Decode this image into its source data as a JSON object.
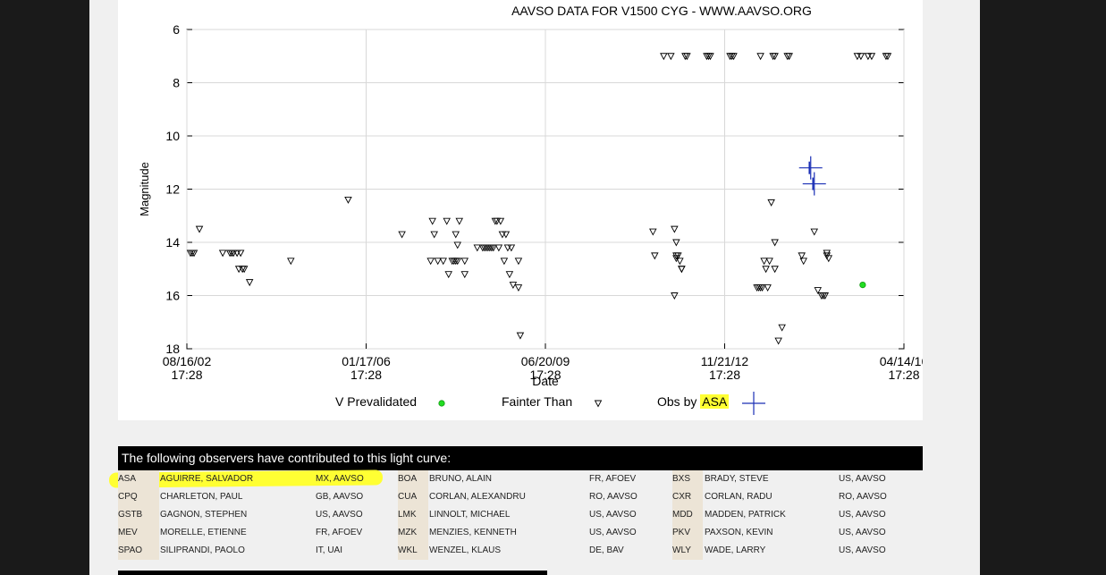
{
  "chart_data": {
    "type": "scatter",
    "title": "AAVSO DATA FOR V1500 CYG - WWW.AAVSO.ORG",
    "xlabel": "Date",
    "ylabel": "Magnitude",
    "ylim": [
      18,
      6
    ],
    "y_inverted": true,
    "y_ticks": [
      "6",
      "8",
      "10",
      "12",
      "14",
      "16",
      "18"
    ],
    "x_ticks": [
      {
        "date": "08/16/02",
        "time": "17:28"
      },
      {
        "date": "01/17/06",
        "time": "17:28"
      },
      {
        "date": "06/20/09",
        "time": "17:28"
      },
      {
        "date": "11/21/12",
        "time": "17:28"
      },
      {
        "date": "04/14/16",
        "time": "17:28"
      }
    ],
    "x_tick_positions": [
      0,
      1,
      2,
      3,
      4
    ],
    "grid": true,
    "legend": [
      {
        "label": "V Prevalidated",
        "marker": "green-dot",
        "color": "#22dd22"
      },
      {
        "label": "Fainter Than",
        "marker": "down-triangle",
        "color": "#000000"
      },
      {
        "label_prefix": "Obs by ",
        "label_highlight": "ASA",
        "marker": "blue-cross",
        "color": "#1a2fb5"
      }
    ],
    "series": [
      {
        "name": "V Prevalidated",
        "x": [
          3.77
        ],
        "y": [
          15.6
        ]
      },
      {
        "name": "Fainter Than",
        "x": [
          0.02,
          0.03,
          0.04,
          0.07,
          0.2,
          0.24,
          0.25,
          0.26,
          0.28,
          0.29,
          0.3,
          0.31,
          0.32,
          0.35,
          0.58,
          0.9,
          1.2,
          1.36,
          1.37,
          1.38,
          1.4,
          1.43,
          1.45,
          1.46,
          1.48,
          1.49,
          1.5,
          1.5,
          1.51,
          1.51,
          1.52,
          1.55,
          1.55,
          1.62,
          1.65,
          1.66,
          1.67,
          1.68,
          1.69,
          1.7,
          1.71,
          1.72,
          1.73,
          1.74,
          1.75,
          1.76,
          1.77,
          1.78,
          1.79,
          1.8,
          1.85,
          1.85,
          1.86,
          1.81,
          1.82,
          2.6,
          2.61,
          2.72,
          2.73,
          2.74,
          2.75,
          2.76,
          2.78,
          2.79,
          2.9,
          2.91,
          2.92,
          3.04,
          3.2,
          2.66,
          2.7,
          2.72,
          2.73,
          2.73,
          2.76,
          3.03,
          3.05,
          3.18,
          3.19,
          3.2,
          3.21,
          3.22,
          3.23,
          3.25,
          3.26,
          3.24,
          3.28,
          3.3,
          3.32,
          3.28,
          3.35,
          3.36,
          3.43,
          3.44,
          3.55,
          3.56,
          3.57,
          3.58,
          3.5,
          3.52,
          3.54,
          3.57,
          3.27,
          3.28,
          3.74,
          3.76,
          3.8,
          3.82,
          3.9,
          3.91
        ],
        "y": [
          14.4,
          14.4,
          14.4,
          13.5,
          14.4,
          14.4,
          14.4,
          14.4,
          14.4,
          15.0,
          14.4,
          15.0,
          15.0,
          15.5,
          14.7,
          12.4,
          13.7,
          14.7,
          13.2,
          13.7,
          14.7,
          14.7,
          13.2,
          15.2,
          14.7,
          14.7,
          14.7,
          13.7,
          14.1,
          14.7,
          13.2,
          15.2,
          14.7,
          14.2,
          14.2,
          14.2,
          14.2,
          14.2,
          14.2,
          14.2,
          14.2,
          13.2,
          13.2,
          14.2,
          13.2,
          13.7,
          14.7,
          13.7,
          14.2,
          15.2,
          15.7,
          14.7,
          17.5,
          14.2,
          15.6,
          13.6,
          14.5,
          13.5,
          14.0,
          14.5,
          14.7,
          15.0,
          7.0,
          7.0,
          7.0,
          7.0,
          7.0,
          7.0,
          7.0,
          7.0,
          7.0,
          16.0,
          14.6,
          14.5,
          15.0,
          7.0,
          7.0,
          15.7,
          15.7,
          15.7,
          15.7,
          14.7,
          15.0,
          14.7,
          12.5,
          15.7,
          14.0,
          17.7,
          17.2,
          15.0,
          7.0,
          7.0,
          14.5,
          14.7,
          16.0,
          16.0,
          14.5,
          14.6,
          13.6,
          15.8,
          16.0,
          14.4,
          7.0,
          7.0,
          7.0,
          7.0,
          7.0,
          7.0,
          7.0,
          7.0
        ]
      },
      {
        "name": "Obs by ASA",
        "x": [
          3.48,
          3.5
        ],
        "y": [
          11.2,
          11.8
        ]
      }
    ]
  },
  "observers": {
    "header": "The following observers have contributed to this light curve:",
    "rows": [
      [
        {
          "code": "ASA",
          "name": "AGUIRRE, SALVADOR",
          "loc": "MX, AAVSO"
        },
        {
          "code": "BOA",
          "name": "BRUNO, ALAIN",
          "loc": "FR, AFOEV"
        },
        {
          "code": "BXS",
          "name": "BRADY, STEVE",
          "loc": "US, AAVSO"
        }
      ],
      [
        {
          "code": "CPQ",
          "name": "CHARLETON, PAUL",
          "loc": "GB, AAVSO"
        },
        {
          "code": "CUA",
          "name": "CORLAN, ALEXANDRU",
          "loc": "RO, AAVSO"
        },
        {
          "code": "CXR",
          "name": "CORLAN, RADU",
          "loc": "RO, AAVSO"
        }
      ],
      [
        {
          "code": "GSTB",
          "name": "GAGNON, STEPHEN",
          "loc": "US, AAVSO"
        },
        {
          "code": "LMK",
          "name": "LINNOLT, MICHAEL",
          "loc": "US, AAVSO"
        },
        {
          "code": "MDD",
          "name": "MADDEN, PATRICK",
          "loc": "US, AAVSO"
        }
      ],
      [
        {
          "code": "MEV",
          "name": "MORELLE, ETIENNE",
          "loc": "FR, AFOEV"
        },
        {
          "code": "MZK",
          "name": "MENZIES, KENNETH",
          "loc": "US, AAVSO"
        },
        {
          "code": "PKV",
          "name": "PAXSON, KEVIN",
          "loc": "US, AAVSO"
        }
      ],
      [
        {
          "code": "SPAO",
          "name": "SILIPRANDI, PAOLO",
          "loc": "IT, UAI"
        },
        {
          "code": "WKL",
          "name": "WENZEL, KLAUS",
          "loc": "DE, BAV"
        },
        {
          "code": "WLY",
          "name": "WADE, LARRY",
          "loc": "US, AAVSO"
        }
      ]
    ]
  }
}
